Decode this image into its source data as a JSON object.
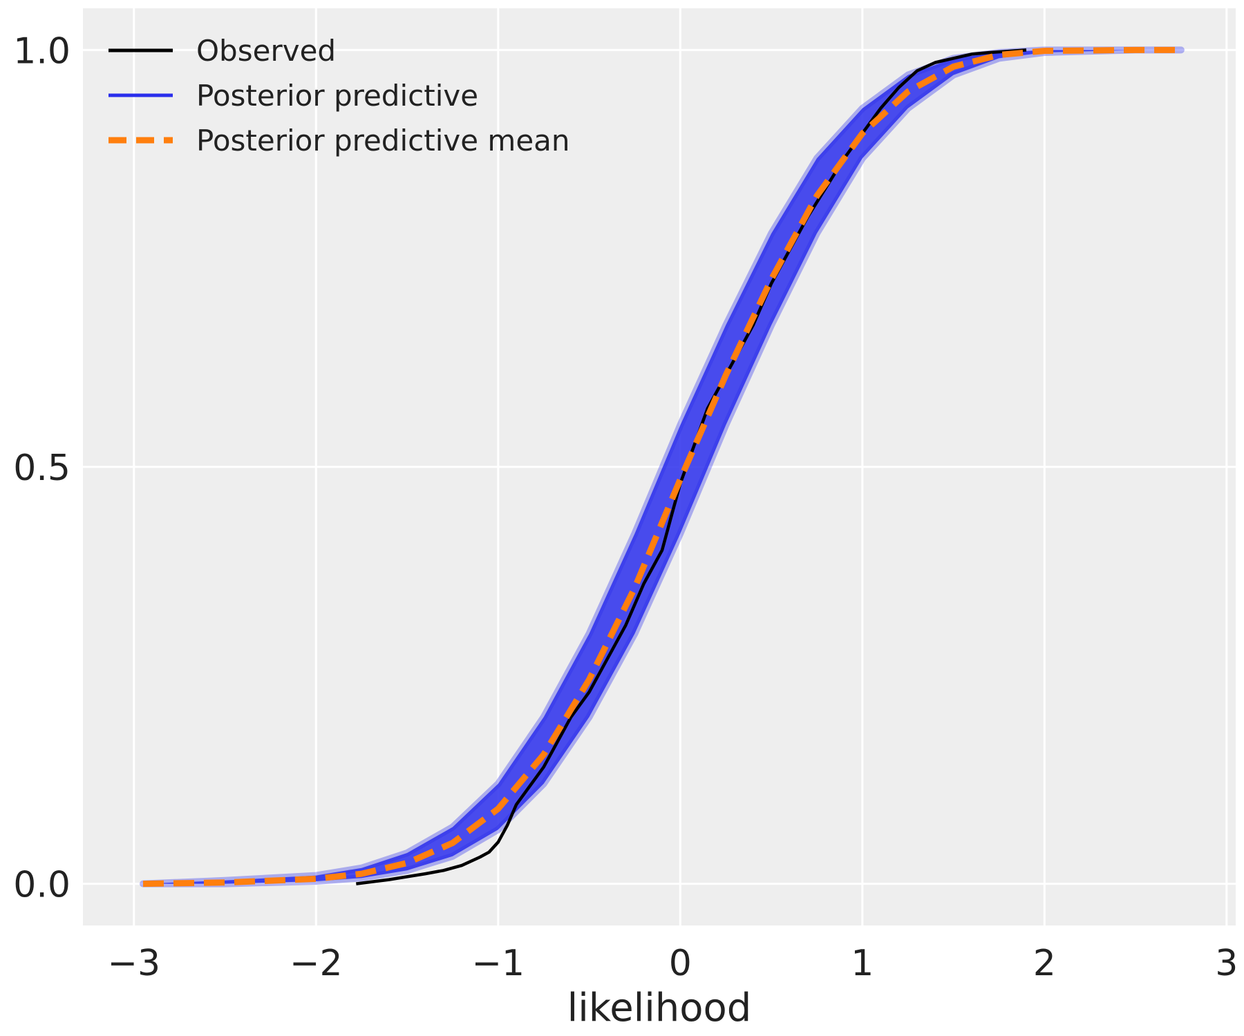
{
  "chart_data": {
    "type": "line",
    "title": "",
    "xlabel": "likelihood",
    "ylabel": "",
    "xlim": [
      -3.28,
      3.05
    ],
    "ylim": [
      -0.05,
      1.05
    ],
    "x_ticks": [
      -3,
      -2,
      -1,
      0,
      1,
      2,
      3
    ],
    "x_tick_labels": [
      "−3",
      "−2",
      "−1",
      "0",
      "1",
      "2",
      "3"
    ],
    "y_ticks": [
      0.0,
      0.5,
      1.0
    ],
    "y_tick_labels": [
      "0.0",
      "0.5",
      "1.0"
    ],
    "grid": true,
    "legend_placement": "top-left",
    "series": [
      {
        "name": "Observed",
        "style": "solid",
        "color": "#000000",
        "x": [
          -1.78,
          -1.6,
          -1.4,
          -1.3,
          -1.2,
          -1.1,
          -1.05,
          -1.0,
          -0.95,
          -0.9,
          -0.85,
          -0.8,
          -0.75,
          -0.7,
          -0.65,
          -0.6,
          -0.5,
          -0.4,
          -0.3,
          -0.2,
          -0.1,
          -0.05,
          0.0,
          0.05,
          0.1,
          0.15,
          0.2,
          0.3,
          0.4,
          0.5,
          0.6,
          0.7,
          0.8,
          0.9,
          1.0,
          1.1,
          1.2,
          1.3,
          1.4,
          1.5,
          1.6,
          1.7,
          1.9
        ],
        "y": [
          0.0,
          0.005,
          0.012,
          0.016,
          0.022,
          0.032,
          0.038,
          0.05,
          0.07,
          0.095,
          0.11,
          0.125,
          0.14,
          0.16,
          0.18,
          0.2,
          0.23,
          0.27,
          0.31,
          0.36,
          0.4,
          0.44,
          0.48,
          0.51,
          0.54,
          0.57,
          0.59,
          0.63,
          0.67,
          0.72,
          0.76,
          0.8,
          0.835,
          0.87,
          0.9,
          0.93,
          0.955,
          0.975,
          0.985,
          0.99,
          0.995,
          0.997,
          1.0
        ]
      },
      {
        "name": "Posterior predictive",
        "style": "band",
        "color": "#2a2eec",
        "x": [
          -2.95,
          -2.5,
          -2.0,
          -1.75,
          -1.5,
          -1.25,
          -1.0,
          -0.75,
          -0.5,
          -0.25,
          0.0,
          0.25,
          0.5,
          0.75,
          1.0,
          1.25,
          1.5,
          1.75,
          2.0,
          2.5,
          2.75
        ],
        "y_low": [
          0.0,
          0.0,
          0.003,
          0.007,
          0.016,
          0.033,
          0.065,
          0.12,
          0.2,
          0.3,
          0.42,
          0.55,
          0.67,
          0.78,
          0.87,
          0.93,
          0.97,
          0.99,
          0.997,
          1.0,
          1.0
        ],
        "y_high": [
          0.0,
          0.004,
          0.01,
          0.019,
          0.037,
          0.068,
          0.12,
          0.2,
          0.3,
          0.42,
          0.55,
          0.67,
          0.78,
          0.87,
          0.93,
          0.97,
          0.99,
          0.997,
          1.0,
          1.0,
          1.0
        ]
      },
      {
        "name": "Posterior predictive mean",
        "style": "dashed",
        "color": "#ff7f0e",
        "x": [
          -2.95,
          -2.5,
          -2.0,
          -1.75,
          -1.5,
          -1.25,
          -1.0,
          -0.75,
          -0.5,
          -0.25,
          0.0,
          0.25,
          0.5,
          0.75,
          1.0,
          1.25,
          1.5,
          1.75,
          2.0,
          2.5,
          2.75
        ],
        "y": [
          0.0,
          0.0015,
          0.006,
          0.012,
          0.025,
          0.049,
          0.09,
          0.155,
          0.245,
          0.355,
          0.485,
          0.61,
          0.725,
          0.825,
          0.9,
          0.95,
          0.98,
          0.994,
          0.999,
          1.0,
          1.0
        ]
      }
    ]
  }
}
